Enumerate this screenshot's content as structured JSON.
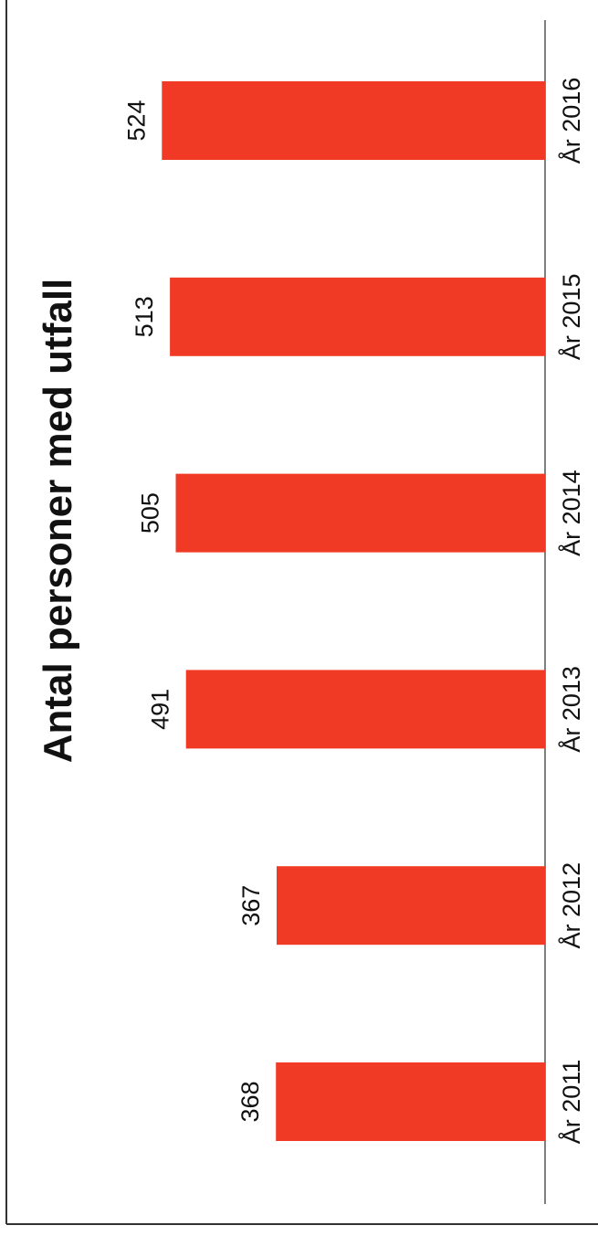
{
  "chart_data": {
    "type": "bar",
    "title": "Antal personer med utfall",
    "categories": [
      "År 2011",
      "År 2012",
      "År 2013",
      "År 2014",
      "År 2015",
      "År 2016"
    ],
    "values": [
      368,
      367,
      491,
      505,
      513,
      524
    ],
    "data_labels": [
      "368",
      "367",
      "491",
      "505",
      "513",
      "524"
    ],
    "xlabel": "",
    "ylabel": "",
    "ylim": [
      0,
      600
    ],
    "grid": false,
    "legend": "none",
    "orientation": "rotated-90",
    "bar_color": "#F13A26",
    "axis_color": "#555555",
    "frame_color": "#333333"
  }
}
